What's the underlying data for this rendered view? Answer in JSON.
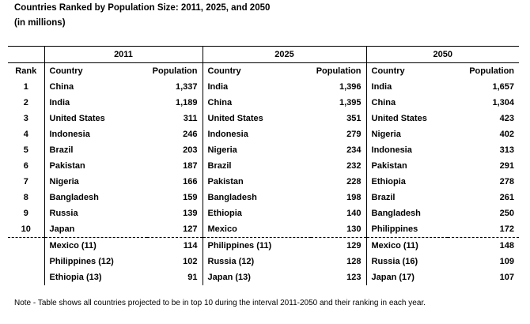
{
  "title": "Countries Ranked by Population Size:  2011, 2025, and 2050",
  "subtitle": "(in millions)",
  "table": {
    "years": [
      "2011",
      "2025",
      "2050"
    ],
    "rank_header": "Rank",
    "country_header": "Country",
    "population_header": "Population",
    "rows": [
      {
        "rank": "1",
        "c2011": "China",
        "p2011": "1,337",
        "c2025": "India",
        "p2025": "1,396",
        "c2050": "India",
        "p2050": "1,657"
      },
      {
        "rank": "2",
        "c2011": "India",
        "p2011": "1,189",
        "c2025": "China",
        "p2025": "1,395",
        "c2050": "China",
        "p2050": "1,304"
      },
      {
        "rank": "3",
        "c2011": "United States",
        "p2011": "311",
        "c2025": "United States",
        "p2025": "351",
        "c2050": "United States",
        "p2050": "423"
      },
      {
        "rank": "4",
        "c2011": "Indonesia",
        "p2011": "246",
        "c2025": "Indonesia",
        "p2025": "279",
        "c2050": "Nigeria",
        "p2050": "402"
      },
      {
        "rank": "5",
        "c2011": "Brazil",
        "p2011": "203",
        "c2025": "Nigeria",
        "p2025": "234",
        "c2050": "Indonesia",
        "p2050": "313"
      },
      {
        "rank": "6",
        "c2011": "Pakistan",
        "p2011": "187",
        "c2025": "Brazil",
        "p2025": "232",
        "c2050": "Pakistan",
        "p2050": "291"
      },
      {
        "rank": "7",
        "c2011": "Nigeria",
        "p2011": "166",
        "c2025": "Pakistan",
        "p2025": "228",
        "c2050": "Ethiopia",
        "p2050": "278"
      },
      {
        "rank": "8",
        "c2011": "Bangladesh",
        "p2011": "159",
        "c2025": "Bangladesh",
        "p2025": "198",
        "c2050": "Brazil",
        "p2050": "261"
      },
      {
        "rank": "9",
        "c2011": "Russia",
        "p2011": "139",
        "c2025": "Ethiopia",
        "p2025": "140",
        "c2050": "Bangladesh",
        "p2050": "250"
      },
      {
        "rank": "10",
        "c2011": "Japan",
        "p2011": "127",
        "c2025": "Mexico",
        "p2025": "130",
        "c2050": "Philippines",
        "p2050": "172"
      },
      {
        "rank": "",
        "c2011": "Mexico (11)",
        "p2011": "114",
        "c2025": "Philippines (11)",
        "p2025": "129",
        "c2050": "Mexico (11)",
        "p2050": "148"
      },
      {
        "rank": "",
        "c2011": "Philippines (12)",
        "p2011": "102",
        "c2025": "Russia (12)",
        "p2025": "128",
        "c2050": "Russia (16)",
        "p2050": "109"
      },
      {
        "rank": "",
        "c2011": "Ethiopia (13)",
        "p2011": "91",
        "c2025": "Japan (13)",
        "p2025": "123",
        "c2050": "Japan (17)",
        "p2050": "107"
      }
    ]
  },
  "note": "Note - Table shows all countries projected to be in top 10 during the interval 2011-2050 and their ranking in each year."
}
